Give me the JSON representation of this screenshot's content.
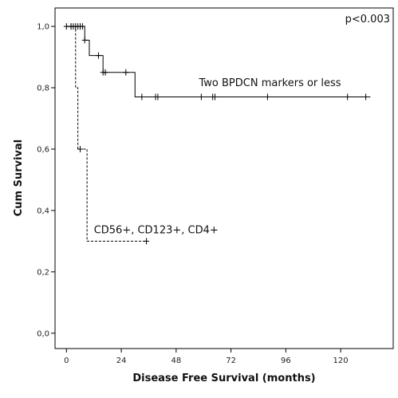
{
  "chart_data": {
    "type": "line",
    "chart_subtype": "kaplan-meier step",
    "xlabel": "Disease Free Survival (months)",
    "ylabel": "Cum Survival",
    "xlim": [
      -5,
      143
    ],
    "ylim": [
      -0.05,
      1.06
    ],
    "x_ticks": [
      0,
      24,
      48,
      72,
      96,
      120
    ],
    "x_tick_labels": [
      "0",
      "24",
      "48",
      "72",
      "96",
      "120"
    ],
    "y_ticks": [
      0.0,
      0.2,
      0.4,
      0.6,
      0.8,
      1.0
    ],
    "y_tick_labels": [
      "0,0",
      "0,2",
      "0,4",
      "0,6",
      "0,8",
      "1,0"
    ],
    "grid": false,
    "legend": "none",
    "annotations": [
      {
        "text": "p<0.003",
        "position": "top-right"
      }
    ],
    "series": [
      {
        "name": "Two BPDCN markers or less",
        "line_style": "solid",
        "color": "#000000",
        "steps": [
          [
            0,
            1.0
          ],
          [
            8,
            0.955
          ],
          [
            10,
            0.905
          ],
          [
            16,
            0.85
          ],
          [
            30,
            0.77
          ],
          [
            133,
            0.77
          ]
        ],
        "censored": [
          [
            0,
            1.0
          ],
          [
            2,
            1.0
          ],
          [
            3,
            1.0
          ],
          [
            4,
            1.0
          ],
          [
            5,
            1.0
          ],
          [
            6,
            1.0
          ],
          [
            7,
            1.0
          ],
          [
            8,
            0.955
          ],
          [
            14,
            0.905
          ],
          [
            16,
            0.85
          ],
          [
            17,
            0.85
          ],
          [
            26,
            0.85
          ],
          [
            33,
            0.77
          ],
          [
            39,
            0.77
          ],
          [
            40,
            0.77
          ],
          [
            59,
            0.77
          ],
          [
            64,
            0.77
          ],
          [
            65,
            0.77
          ],
          [
            88,
            0.77
          ],
          [
            123,
            0.77
          ],
          [
            131,
            0.77
          ]
        ]
      },
      {
        "name": "CD56+, CD123+, CD4+",
        "line_style": "dashed",
        "color": "#000000",
        "steps": [
          [
            0,
            1.0
          ],
          [
            4,
            0.8
          ],
          [
            5,
            0.6
          ],
          [
            9,
            0.3
          ],
          [
            35,
            0.3
          ]
        ],
        "censored": [
          [
            2,
            1.0
          ],
          [
            6,
            0.6
          ],
          [
            35,
            0.3
          ]
        ]
      }
    ],
    "series_labels": [
      {
        "series": 0,
        "text": "Two BPDCN markers or less",
        "x": 58,
        "y": 0.805
      },
      {
        "series": 1,
        "text": "CD56+, CD123+, CD4+",
        "x": 12,
        "y": 0.325
      }
    ]
  }
}
